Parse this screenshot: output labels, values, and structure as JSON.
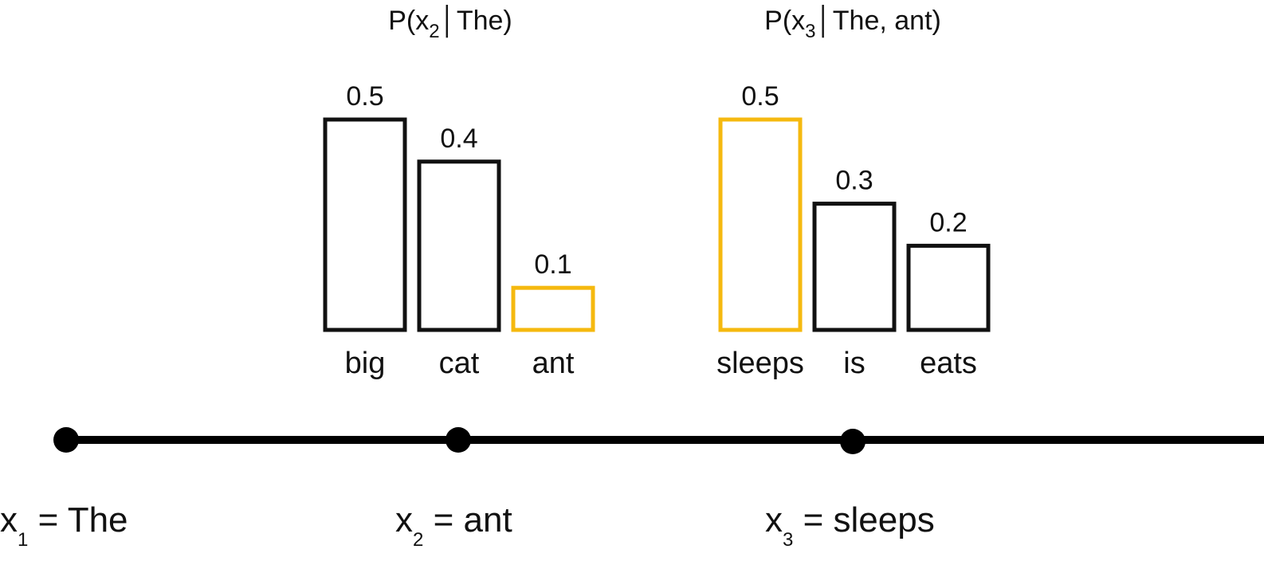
{
  "chart_data": [
    {
      "type": "bar",
      "title": "P(x₂ | The)",
      "title_parts": {
        "prefix": "P(x",
        "subscript": "2",
        "suffix": "│The)"
      },
      "categories": [
        "big",
        "cat",
        "ant"
      ],
      "values": [
        0.5,
        0.4,
        0.1
      ],
      "value_labels": [
        "0.5",
        "0.4",
        "0.1"
      ],
      "selected": "ant",
      "ylim": [
        0,
        0.5
      ]
    },
    {
      "type": "bar",
      "title": "P(x₃ | The, ant)",
      "title_parts": {
        "prefix": "P(x",
        "subscript": "3",
        "suffix": "│The, ant)"
      },
      "categories": [
        "sleeps",
        "is",
        "eats"
      ],
      "values": [
        0.5,
        0.3,
        0.2
      ],
      "value_labels": [
        "0.5",
        "0.3",
        "0.2"
      ],
      "selected": "sleeps",
      "ylim": [
        0,
        0.5
      ]
    }
  ],
  "timeline": {
    "tokens": [
      {
        "var": "x",
        "sub": "1",
        "eq": " = The"
      },
      {
        "var": "x",
        "sub": "2",
        "eq": " = ant"
      },
      {
        "var": "x",
        "sub": "3",
        "eq": " = sleeps"
      }
    ]
  },
  "colors": {
    "default_bar": "#111111",
    "selected_bar": "#F5B90F",
    "line": "#000000"
  }
}
